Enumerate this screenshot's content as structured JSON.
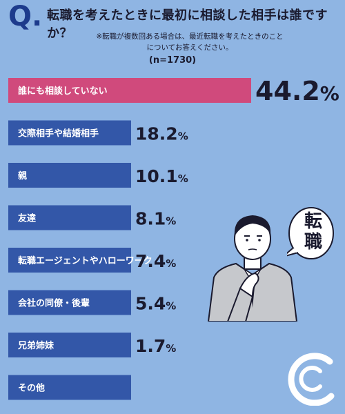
{
  "header": {
    "q_letter": "Q",
    "question": "転職を考えたときに最初に相談した相手は誰ですか？",
    "note_line1": "※転職が複数回ある場合は、最近転職を考えたときのこと",
    "note_line2": "についてお答えください。",
    "sample_size": "(n=1730)"
  },
  "speech_bubble": {
    "text_line1": "転",
    "text_line2": "職"
  },
  "colors": {
    "background": "#8fb5e3",
    "highlight_bar": "#d04a7c",
    "bar": "#3357a8",
    "title": "#1d3b8c"
  },
  "chart_data": {
    "type": "bar",
    "orientation": "horizontal",
    "categories": [
      "誰にも相談していない",
      "交際相手や結婚相手",
      "親",
      "友達",
      "転職エージェントやハローワーク",
      "会社の同僚・後輩",
      "兄弟姉妹",
      "その他"
    ],
    "values": [
      44.2,
      18.2,
      10.1,
      8.1,
      7.4,
      5.4,
      1.7,
      null
    ],
    "value_labels": [
      "44.2",
      "18.2",
      "10.1",
      "8.1",
      "7.4",
      "5.4",
      "1.7",
      ""
    ],
    "unit": "%",
    "title": "",
    "xlabel": "",
    "ylabel": ""
  }
}
